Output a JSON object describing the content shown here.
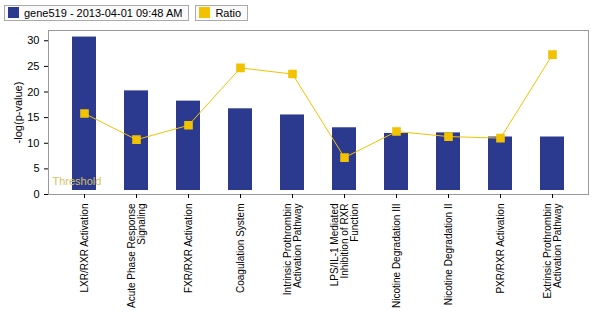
{
  "chart_data": {
    "type": "bar",
    "categories": [
      "LXR/RXR Activation",
      "Acute Phase Response Signaling",
      "FXR/RXR Activation",
      "Coagulation System",
      "Intrinsic Prothrombin Activation Pathway",
      "LPS/IL-1 Mediated Inhibition of RXR Function",
      "Nicotine Degradation III",
      "Nicotine Degradation II",
      "PXR/RXR Activation",
      "Extrinsic Prothrombin Activation Pathway"
    ],
    "series": [
      {
        "name": "gene519 - 2013-04-01 09:48 AM",
        "type": "bar",
        "color": "#2b3a8f",
        "values": [
          31.5,
          21,
          19,
          17.5,
          16.3,
          13.8,
          12.7,
          12.8,
          12,
          12
        ]
      },
      {
        "name": "Ratio",
        "type": "line",
        "color": "#f2c200",
        "marker": "square",
        "line_style": "solid",
        "values": [
          15.8,
          10.7,
          13.5,
          24.7,
          23.5,
          7.2,
          12.3,
          11.3,
          11,
          27.3
        ]
      }
    ],
    "y_label": "-log(p-value)",
    "ylim": [
      0,
      32
    ],
    "yticks": [
      0,
      5,
      10,
      15,
      20,
      25,
      30
    ],
    "annotations": [
      {
        "text": "Threshold",
        "y": 1.3
      }
    ],
    "legend": "top"
  }
}
